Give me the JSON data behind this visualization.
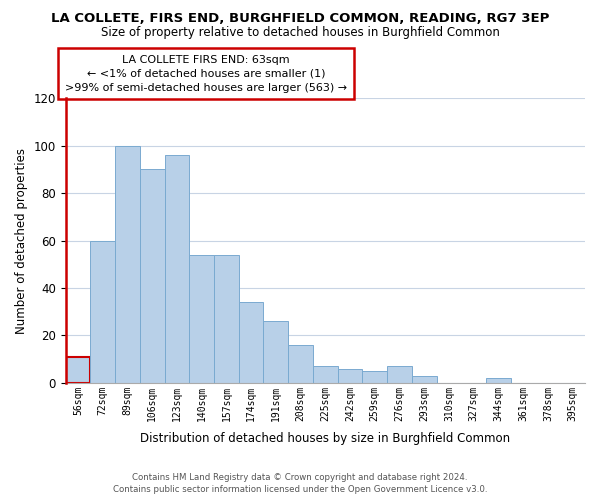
{
  "title": "LA COLLETE, FIRS END, BURGHFIELD COMMON, READING, RG7 3EP",
  "subtitle": "Size of property relative to detached houses in Burghfield Common",
  "xlabel": "Distribution of detached houses by size in Burghfield Common",
  "ylabel": "Number of detached properties",
  "bar_color": "#b8d0e8",
  "bar_edge_color": "#7aaad0",
  "highlight_color": "#cc0000",
  "categories": [
    "56sqm",
    "72sqm",
    "89sqm",
    "106sqm",
    "123sqm",
    "140sqm",
    "157sqm",
    "174sqm",
    "191sqm",
    "208sqm",
    "225sqm",
    "242sqm",
    "259sqm",
    "276sqm",
    "293sqm",
    "310sqm",
    "327sqm",
    "344sqm",
    "361sqm",
    "378sqm",
    "395sqm"
  ],
  "values": [
    11,
    60,
    100,
    90,
    96,
    54,
    54,
    34,
    26,
    16,
    7,
    6,
    5,
    7,
    3,
    0,
    0,
    2,
    0,
    0,
    0
  ],
  "highlight_bar_index": 0,
  "annotation_title": "LA COLLETE FIRS END: 63sqm",
  "annotation_line1": "← <1% of detached houses are smaller (1)",
  "annotation_line2": ">99% of semi-detached houses are larger (563) →",
  "ylim": [
    0,
    120
  ],
  "yticks": [
    0,
    20,
    40,
    60,
    80,
    100,
    120
  ],
  "footer_line1": "Contains HM Land Registry data © Crown copyright and database right 2024.",
  "footer_line2": "Contains public sector information licensed under the Open Government Licence v3.0.",
  "bg_color": "#ffffff",
  "grid_color": "#c8d4e4"
}
